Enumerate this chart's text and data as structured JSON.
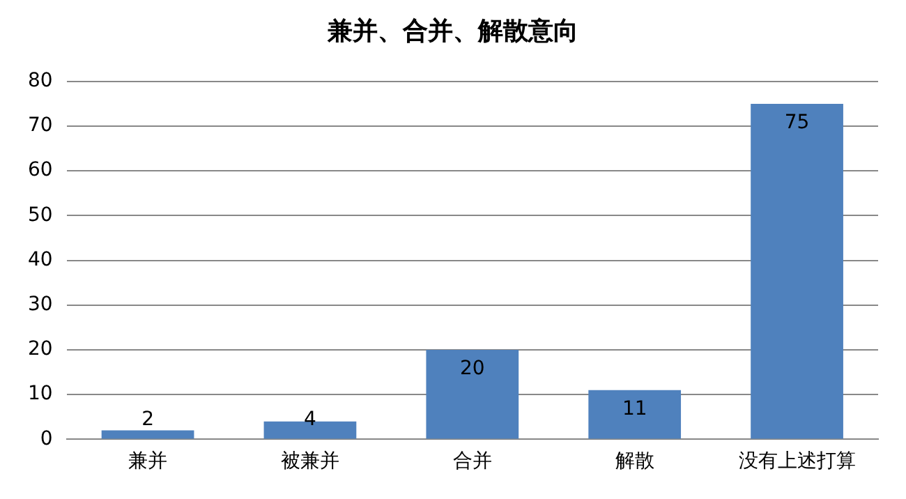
{
  "chart_data": {
    "type": "bar",
    "title": "兼并、合并、解散意向",
    "categories": [
      "兼并",
      "被兼并",
      "合并",
      "解散",
      "没有上述打算"
    ],
    "values": [
      2,
      4,
      20,
      11,
      75
    ],
    "color": "#4f81bd",
    "ylim": [
      0,
      80
    ],
    "yticks": [
      0,
      10,
      20,
      30,
      40,
      50,
      60,
      70,
      80
    ],
    "grid": "y",
    "data_labels": true
  }
}
